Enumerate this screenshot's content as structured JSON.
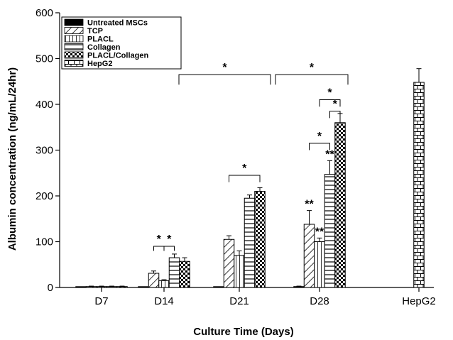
{
  "chart_data": {
    "type": "bar",
    "xlabel": "Culture Time (Days)",
    "ylabel": "Albumin concentration (ng/mL/24hr)",
    "ylim": [
      0,
      600
    ],
    "yticks": [
      0,
      100,
      200,
      300,
      400,
      500,
      600
    ],
    "categories": [
      "D7",
      "D14",
      "D21",
      "D28",
      "HepG2"
    ],
    "legend_position": "top-left",
    "grid": false,
    "series": [
      {
        "name": "Untreated MSCs",
        "pattern": "solid-black",
        "values": [
          1,
          1,
          1,
          2,
          null
        ],
        "errors": [
          0,
          0,
          0,
          1,
          null
        ]
      },
      {
        "name": "TCP",
        "pattern": "diagonal",
        "values": [
          2,
          31,
          105,
          138,
          null
        ],
        "errors": [
          1,
          5,
          8,
          30,
          null
        ]
      },
      {
        "name": "PLACL",
        "pattern": "vertical-lines",
        "values": [
          2,
          15,
          70,
          100,
          null
        ],
        "errors": [
          1,
          2,
          10,
          8,
          null
        ]
      },
      {
        "name": "Collagen",
        "pattern": "horizontal-lines",
        "values": [
          2,
          65,
          195,
          247,
          null
        ],
        "errors": [
          1,
          8,
          7,
          30,
          null
        ]
      },
      {
        "name": "PLACL/Collagen",
        "pattern": "checker",
        "values": [
          2,
          57,
          210,
          360,
          null
        ],
        "errors": [
          1,
          8,
          8,
          20,
          null
        ]
      },
      {
        "name": "HepG2",
        "pattern": "brick",
        "values": [
          null,
          null,
          null,
          null,
          448
        ],
        "errors": [
          null,
          null,
          null,
          null,
          30
        ]
      }
    ],
    "annotations": [
      {
        "label": "*",
        "type": "bracket",
        "from": "D14:TCP",
        "to": "D14:PLACL"
      },
      {
        "label": "*",
        "type": "bracket",
        "from": "D14:PLACL",
        "to": "D14:Collagen"
      },
      {
        "label": "*",
        "type": "bracket",
        "from": "D21:TCP",
        "to": "D21:PLACL/Collagen"
      },
      {
        "label": "*",
        "type": "bracket",
        "from": "D14:PLACL",
        "to": "D21:PLACL/Collagen"
      },
      {
        "label": "*",
        "type": "bracket",
        "from": "D21:PLACL/Collagen",
        "to": "D28:PLACL/Collagen"
      },
      {
        "label": "*",
        "type": "bracket",
        "from": "D28:TCP",
        "to": "D28:Collagen"
      },
      {
        "label": "*",
        "type": "bracket",
        "from": "D28:PLACL",
        "to": "D28:PLACL/Collagen"
      },
      {
        "label": "*",
        "type": "bracket",
        "from": "D28:Collagen",
        "to": "D28:PLACL/Collagen"
      },
      {
        "label": "**",
        "type": "bar-mark",
        "bar": "D28:TCP"
      },
      {
        "label": "**",
        "type": "bar-mark",
        "bar": "D28:PLACL"
      },
      {
        "label": "**",
        "type": "bar-mark",
        "bar": "D28:Collagen"
      }
    ]
  }
}
